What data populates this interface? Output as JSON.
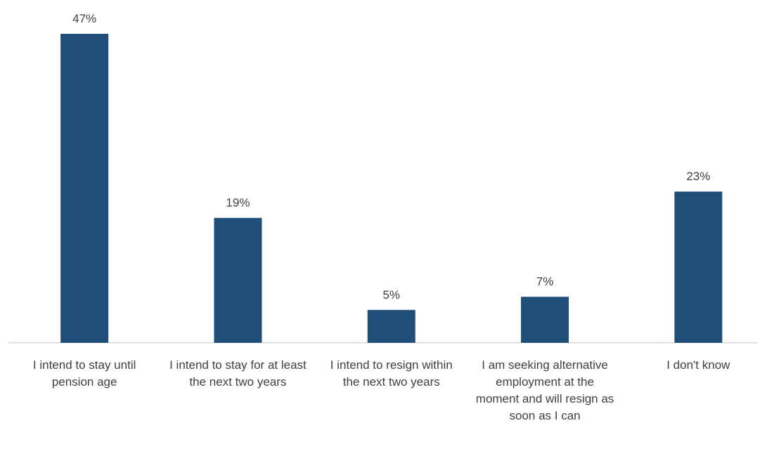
{
  "chart_data": {
    "type": "bar",
    "categories": [
      "I intend to stay until pension age",
      "I intend to stay for at least the next two years",
      "I intend to resign within the next two years",
      "I am seeking alternative employment at the moment and will resign as soon as I can",
      "I don't know"
    ],
    "values": [
      47,
      19,
      5,
      7,
      23
    ],
    "value_labels": [
      "47%",
      "19%",
      "5%",
      "7%",
      "23%"
    ],
    "color": "#1f4e79"
  }
}
